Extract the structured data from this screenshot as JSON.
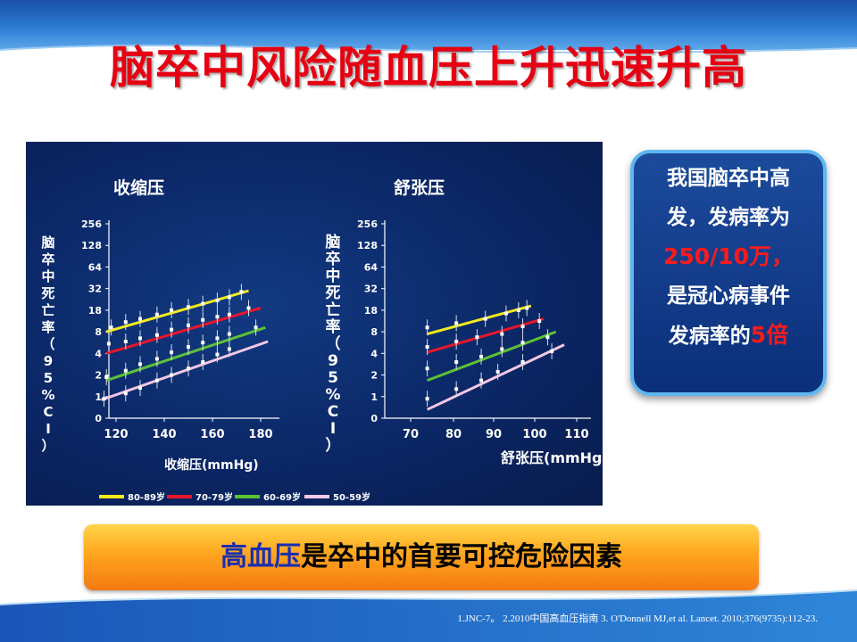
{
  "slide": {
    "title": "脑卒中风险随血压上升迅速升高",
    "info_line1": "我国脑卒中高",
    "info_line2": "发，发病率为",
    "info_rate": "250/10万，",
    "info_line4": "是冠心病事件",
    "info_line5_prefix": "发病率的",
    "info_line5_red": "5倍",
    "banner_accent": "高血压",
    "banner_rest": "是卒中的首要可控危险因素",
    "refs": "1.JNC-7。 2.2010中国高血压指南 3. O'Donnell MJ,et al. Lancet. 2010;376(9735):112-23.",
    "colors": {
      "title": "#e60012",
      "accent_blue": "#1a2fb0"
    }
  },
  "chart_data": [
    {
      "type": "scatter",
      "title": "收缩压",
      "xlabel": "收缩压(mmHg)",
      "ylabel": "脑卒中死亡率（95%CI）",
      "x_ticks": [
        "120",
        "140",
        "160",
        "180"
      ],
      "y_ticks": [
        "0",
        "1",
        "2",
        "4",
        "8",
        "18",
        "32",
        "64",
        "128",
        "256"
      ],
      "xlim": [
        113,
        183
      ],
      "series": [
        {
          "name": "80-89岁",
          "color": "#f2ea1c",
          "x": [
            118,
            124,
            130,
            137,
            143,
            150,
            156,
            162,
            167,
            172
          ],
          "y": [
            4.2,
            4.45,
            4.6,
            4.8,
            5.0,
            5.15,
            5.3,
            5.45,
            5.6,
            5.85
          ],
          "fit": [
            [
              116,
              4.0
            ],
            [
              175,
              5.9
            ]
          ]
        },
        {
          "name": "70-79岁",
          "color": "#e8162a",
          "x": [
            117,
            124,
            130,
            137,
            143,
            150,
            156,
            162,
            167,
            175
          ],
          "y": [
            3.45,
            3.55,
            3.7,
            3.85,
            4.1,
            4.3,
            4.55,
            4.7,
            4.8,
            5.1
          ],
          "fit": [
            [
              116,
              3.0
            ],
            [
              180,
              5.1
            ]
          ]
        },
        {
          "name": "60-69岁",
          "color": "#5cc234",
          "x": [
            116,
            124,
            130,
            137,
            143,
            150,
            156,
            162,
            167,
            178
          ],
          "y": [
            1.9,
            2.2,
            2.5,
            2.75,
            3.05,
            3.3,
            3.5,
            3.7,
            3.9,
            4.2
          ],
          "fit": [
            [
              116,
              1.75
            ],
            [
              182,
              4.2
            ]
          ]
        },
        {
          "name": "50-59岁",
          "color": "#f3c8e6",
          "x": [
            115,
            124,
            130,
            137,
            143,
            150,
            156,
            162,
            167
          ],
          "y": [
            0.9,
            1.15,
            1.4,
            1.75,
            2.0,
            2.3,
            2.6,
            2.95,
            3.2
          ],
          "fit": [
            [
              114,
              0.85
            ],
            [
              183,
              3.55
            ]
          ]
        }
      ]
    },
    {
      "type": "scatter",
      "title": "舒张压",
      "xlabel": "舒张压(mmHg)",
      "ylabel": "脑卒中死亡率（95%CI）",
      "x_ticks": [
        "70",
        "80",
        "90",
        "100",
        "110"
      ],
      "y_ticks": [
        "0",
        "1",
        "2",
        "4",
        "8",
        "18",
        "32",
        "64",
        "128",
        "256"
      ],
      "xlim": [
        69,
        111
      ],
      "series": [
        {
          "name": "80-89岁",
          "color": "#f2ea1c",
          "x": [
            74,
            81,
            88,
            93,
            96,
            98
          ],
          "y": [
            4.2,
            4.4,
            4.6,
            4.85,
            5.0,
            5.1
          ],
          "fit": [
            [
              74,
              3.9
            ],
            [
              99,
              5.2
            ]
          ]
        },
        {
          "name": "70-79岁",
          "color": "#e8162a",
          "x": [
            74,
            81,
            86,
            92,
            97,
            101
          ],
          "y": [
            3.3,
            3.55,
            3.75,
            3.9,
            4.25,
            4.5
          ],
          "fit": [
            [
              74,
              3.05
            ],
            [
              102,
              4.6
            ]
          ]
        },
        {
          "name": "60-69岁",
          "color": "#5cc234",
          "x": [
            74,
            81,
            87,
            92,
            97,
            103
          ],
          "y": [
            2.3,
            2.6,
            2.85,
            3.2,
            3.5,
            3.75
          ],
          "fit": [
            [
              74,
              1.75
            ],
            [
              105,
              4.0
            ]
          ]
        },
        {
          "name": "50-59岁",
          "color": "#f3c8e6",
          "x": [
            74,
            81,
            87,
            91,
            97,
            104
          ],
          "y": [
            0.9,
            1.35,
            1.75,
            2.15,
            2.6,
            3.1
          ],
          "fit": [
            [
              74,
              0.4
            ],
            [
              107,
              3.4
            ]
          ]
        }
      ]
    }
  ]
}
